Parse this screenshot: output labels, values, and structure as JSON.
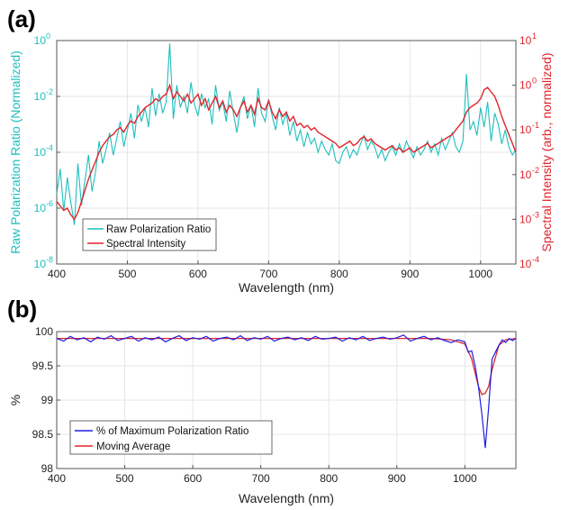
{
  "chart_data": [
    {
      "panel": "(a)",
      "type": "line",
      "xlabel": "Wavelength (nm)",
      "ylabel_left": "Raw Polarization Ratio (Normalized)",
      "ylabel_right": "Spectral Intensity (arb., normalized)",
      "xlim": [
        400,
        1050
      ],
      "xticks": [
        400,
        500,
        600,
        700,
        800,
        900,
        1000
      ],
      "ylim_left": [
        -8,
        0
      ],
      "yticks_left": [
        "10",
        "10",
        "10",
        "10",
        "10"
      ],
      "yticks_left_exp": [
        "-8",
        "-6",
        "-4",
        "-2",
        "0"
      ],
      "ylim_right": [
        -4,
        1
      ],
      "yticks_right": [
        "10",
        "10",
        "10",
        "10",
        "10",
        "10"
      ],
      "yticks_right_exp": [
        "-4",
        "-3",
        "-2",
        "-1",
        "0",
        "1"
      ],
      "y_scale": "log",
      "grid": true,
      "legend_position": "bottom-left",
      "colors": {
        "left_axis": "#1fbfbf",
        "right_axis": "#e0242b",
        "series1": "#1fbfbf",
        "series2": "#e0242b"
      },
      "series": [
        {
          "name": "Raw Polarization Ratio",
          "axis": "left",
          "x": [
            400,
            405,
            410,
            415,
            420,
            425,
            430,
            435,
            440,
            445,
            450,
            455,
            460,
            465,
            470,
            475,
            480,
            485,
            490,
            495,
            500,
            505,
            510,
            515,
            520,
            525,
            530,
            535,
            540,
            545,
            550,
            555,
            560,
            565,
            570,
            575,
            580,
            585,
            590,
            595,
            600,
            605,
            610,
            615,
            620,
            625,
            630,
            635,
            640,
            645,
            650,
            655,
            660,
            665,
            670,
            675,
            680,
            685,
            690,
            695,
            700,
            705,
            710,
            715,
            720,
            725,
            730,
            735,
            740,
            745,
            750,
            755,
            760,
            765,
            770,
            775,
            780,
            785,
            790,
            795,
            800,
            805,
            810,
            815,
            820,
            825,
            830,
            835,
            840,
            845,
            850,
            855,
            860,
            865,
            870,
            875,
            880,
            885,
            890,
            895,
            900,
            905,
            910,
            915,
            920,
            925,
            930,
            935,
            940,
            945,
            950,
            955,
            960,
            965,
            970,
            975,
            980,
            985,
            990,
            995,
            1000,
            1005,
            1010,
            1015,
            1020,
            1025,
            1030,
            1035,
            1040,
            1045,
            1050
          ],
          "log10_y": [
            -5.5,
            -4.6,
            -6.1,
            -4.9,
            -5.8,
            -6.6,
            -4.4,
            -5.9,
            -5.0,
            -4.1,
            -5.4,
            -4.7,
            -3.6,
            -4.4,
            -3.9,
            -3.3,
            -4.1,
            -3.5,
            -2.9,
            -3.8,
            -3.2,
            -2.6,
            -3.5,
            -2.3,
            -2.9,
            -2.4,
            -3.1,
            -1.7,
            -2.7,
            -1.9,
            -2.6,
            -2.2,
            -0.1,
            -2.8,
            -1.6,
            -2.4,
            -2.0,
            -2.6,
            -1.5,
            -2.3,
            -2.7,
            -1.9,
            -2.4,
            -2.1,
            -3.0,
            -1.6,
            -2.5,
            -2.2,
            -2.9,
            -1.8,
            -2.6,
            -3.3,
            -2.4,
            -2.0,
            -2.8,
            -2.3,
            -3.1,
            -1.7,
            -2.6,
            -2.9,
            -2.1,
            -2.7,
            -3.2,
            -2.4,
            -3.0,
            -2.6,
            -3.4,
            -2.9,
            -3.6,
            -3.2,
            -3.8,
            -3.3,
            -3.7,
            -3.5,
            -4.0,
            -3.6,
            -3.9,
            -4.1,
            -3.7,
            -4.3,
            -4.4,
            -4.0,
            -3.8,
            -4.2,
            -3.9,
            -4.1,
            -3.7,
            -3.4,
            -3.9,
            -3.6,
            -3.8,
            -4.2,
            -3.9,
            -4.3,
            -4.0,
            -3.8,
            -4.1,
            -3.7,
            -4.0,
            -3.6,
            -3.9,
            -4.2,
            -3.8,
            -4.1,
            -3.9,
            -3.6,
            -4.0,
            -3.7,
            -4.1,
            -3.5,
            -3.9,
            -3.6,
            -3.3,
            -3.8,
            -4.0,
            -3.6,
            -1.2,
            -3.2,
            -2.9,
            -3.4,
            -2.4,
            -3.1,
            -2.2,
            -3.6,
            -2.6,
            -3.0,
            -3.7,
            -3.2,
            -3.8,
            -4.1,
            -3.9
          ]
        },
        {
          "name": "Spectral Intensity",
          "axis": "right",
          "x": [
            400,
            405,
            410,
            415,
            420,
            425,
            430,
            435,
            440,
            445,
            450,
            455,
            460,
            465,
            470,
            475,
            480,
            485,
            490,
            495,
            500,
            505,
            510,
            515,
            520,
            525,
            530,
            535,
            540,
            545,
            550,
            555,
            560,
            565,
            570,
            575,
            580,
            585,
            590,
            595,
            600,
            605,
            610,
            615,
            620,
            625,
            630,
            635,
            640,
            645,
            650,
            655,
            660,
            665,
            670,
            675,
            680,
            685,
            690,
            695,
            700,
            705,
            710,
            715,
            720,
            725,
            730,
            735,
            740,
            745,
            750,
            755,
            760,
            765,
            770,
            775,
            780,
            785,
            790,
            795,
            800,
            805,
            810,
            815,
            820,
            825,
            830,
            835,
            840,
            845,
            850,
            855,
            860,
            865,
            870,
            875,
            880,
            885,
            890,
            895,
            900,
            905,
            910,
            915,
            920,
            925,
            930,
            935,
            940,
            945,
            950,
            955,
            960,
            965,
            970,
            975,
            980,
            985,
            990,
            995,
            1000,
            1005,
            1010,
            1015,
            1020,
            1025,
            1030,
            1035,
            1040,
            1045,
            1050
          ],
          "log10_y": [
            -2.6,
            -2.7,
            -2.8,
            -2.75,
            -2.9,
            -3.0,
            -2.85,
            -2.6,
            -2.35,
            -2.1,
            -1.9,
            -1.7,
            -1.5,
            -1.35,
            -1.25,
            -1.15,
            -1.1,
            -1.0,
            -0.95,
            -1.05,
            -0.9,
            -0.8,
            -0.85,
            -0.7,
            -0.6,
            -0.5,
            -0.45,
            -0.4,
            -0.3,
            -0.35,
            -0.25,
            -0.2,
            0.0,
            -0.3,
            -0.15,
            -0.25,
            -0.35,
            -0.2,
            -0.4,
            -0.3,
            -0.2,
            -0.45,
            -0.3,
            -0.55,
            -0.4,
            -0.25,
            -0.5,
            -0.35,
            -0.6,
            -0.45,
            -0.55,
            -0.7,
            -0.5,
            -0.35,
            -0.6,
            -0.45,
            -0.65,
            -0.3,
            -0.5,
            -0.55,
            -0.35,
            -0.6,
            -0.75,
            -0.55,
            -0.7,
            -0.6,
            -0.8,
            -0.7,
            -0.9,
            -0.85,
            -0.95,
            -0.9,
            -1.0,
            -0.95,
            -1.05,
            -1.1,
            -1.15,
            -1.2,
            -1.25,
            -1.3,
            -1.4,
            -1.35,
            -1.3,
            -1.25,
            -1.35,
            -1.3,
            -1.2,
            -1.15,
            -1.25,
            -1.2,
            -1.3,
            -1.35,
            -1.4,
            -1.45,
            -1.4,
            -1.35,
            -1.45,
            -1.4,
            -1.5,
            -1.45,
            -1.4,
            -1.5,
            -1.45,
            -1.4,
            -1.35,
            -1.3,
            -1.4,
            -1.35,
            -1.3,
            -1.25,
            -1.2,
            -1.15,
            -1.1,
            -1.0,
            -0.9,
            -0.8,
            -0.6,
            -0.5,
            -0.45,
            -0.4,
            -0.3,
            -0.1,
            -0.05,
            -0.15,
            -0.25,
            -0.45,
            -0.7,
            -0.9,
            -1.1,
            -1.3,
            -1.5
          ]
        }
      ]
    },
    {
      "panel": "(b)",
      "type": "line",
      "xlabel": "Wavelength (nm)",
      "ylabel": "%",
      "xlim": [
        400,
        1075
      ],
      "xticks": [
        400,
        500,
        600,
        700,
        800,
        900,
        1000
      ],
      "ylim": [
        98,
        100
      ],
      "yticks": [
        98,
        98.5,
        99,
        99.5,
        100
      ],
      "ytick_labels": [
        "98",
        "98.5",
        "99",
        "99.5",
        "100"
      ],
      "grid": true,
      "legend_position": "bottom-left",
      "colors": {
        "series1": "#1f1fe0",
        "series2": "#e0242b"
      },
      "series": [
        {
          "name": "% of Maximum Polarization Ratio",
          "x": [
            400,
            410,
            420,
            430,
            440,
            450,
            460,
            470,
            480,
            490,
            500,
            510,
            520,
            530,
            540,
            550,
            560,
            570,
            580,
            590,
            600,
            610,
            620,
            630,
            640,
            650,
            660,
            670,
            680,
            690,
            700,
            710,
            720,
            730,
            740,
            750,
            760,
            770,
            780,
            790,
            800,
            810,
            820,
            830,
            840,
            850,
            860,
            870,
            880,
            890,
            900,
            910,
            920,
            930,
            940,
            950,
            960,
            970,
            980,
            990,
            1000,
            1005,
            1010,
            1015,
            1020,
            1025,
            1030,
            1035,
            1040,
            1045,
            1050,
            1055,
            1060,
            1065,
            1070,
            1075
          ],
          "y": [
            99.9,
            99.86,
            99.93,
            99.88,
            99.91,
            99.85,
            99.92,
            99.89,
            99.94,
            99.87,
            99.9,
            99.93,
            99.86,
            99.91,
            99.88,
            99.92,
            99.85,
            99.9,
            99.94,
            99.87,
            99.91,
            99.89,
            99.93,
            99.86,
            99.9,
            99.92,
            99.88,
            99.94,
            99.87,
            99.91,
            99.89,
            99.93,
            99.86,
            99.9,
            99.92,
            99.88,
            99.91,
            99.87,
            99.93,
            99.89,
            99.9,
            99.92,
            99.86,
            99.91,
            99.88,
            99.93,
            99.87,
            99.9,
            99.92,
            99.89,
            99.91,
            99.95,
            99.86,
            99.9,
            99.93,
            99.88,
            99.91,
            99.87,
            99.84,
            99.88,
            99.85,
            99.7,
            99.72,
            99.5,
            99.2,
            98.8,
            98.3,
            98.9,
            99.6,
            99.7,
            99.8,
            99.88,
            99.84,
            99.9,
            99.87,
            99.9
          ]
        },
        {
          "name": "Moving Average",
          "x": [
            400,
            450,
            500,
            550,
            600,
            650,
            700,
            750,
            800,
            850,
            900,
            950,
            980,
            1000,
            1010,
            1020,
            1025,
            1030,
            1035,
            1040,
            1050,
            1060,
            1075
          ],
          "y": [
            99.9,
            99.9,
            99.9,
            99.9,
            99.9,
            99.9,
            99.9,
            99.9,
            99.9,
            99.9,
            99.9,
            99.9,
            99.88,
            99.82,
            99.6,
            99.2,
            99.08,
            99.1,
            99.2,
            99.45,
            99.8,
            99.88,
            99.9
          ]
        }
      ]
    }
  ]
}
